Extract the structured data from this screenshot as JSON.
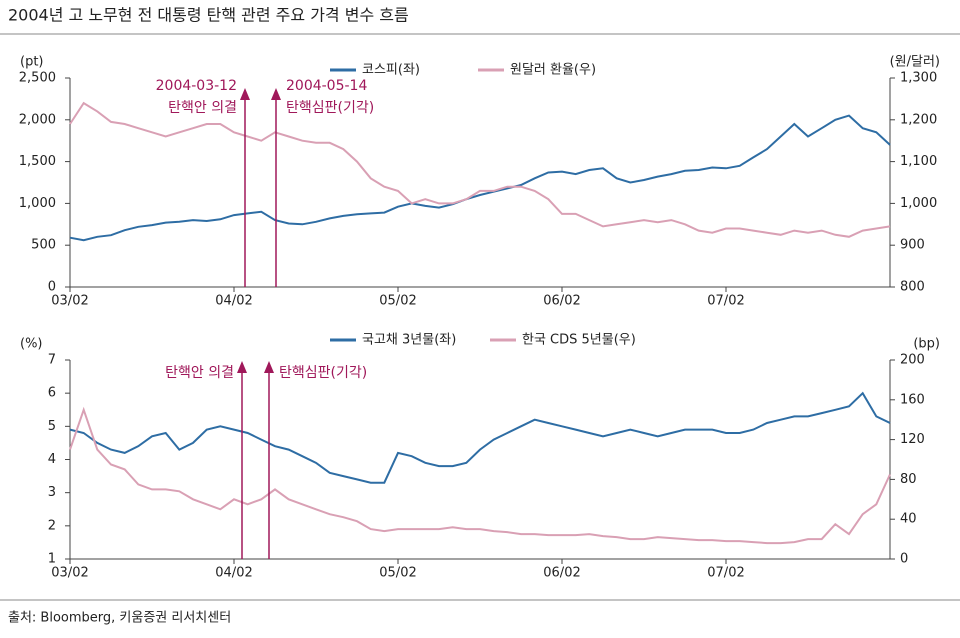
{
  "title": "2004년 고 노무현 전 대통령 탄핵 관련 주요 가격 변수 흐름",
  "source": "출처: Bloomberg, 키움증권 리서치센터",
  "chart_data": [
    {
      "type": "line",
      "categories": [
        "03/02",
        null,
        null,
        null,
        null,
        null,
        null,
        null,
        null,
        null,
        null,
        null,
        "04/02",
        null,
        null,
        null,
        null,
        null,
        null,
        null,
        null,
        null,
        null,
        null,
        "05/02",
        null,
        null,
        null,
        null,
        null,
        null,
        null,
        null,
        null,
        null,
        null,
        "06/02",
        null,
        null,
        null,
        null,
        null,
        null,
        null,
        null,
        null,
        null,
        null,
        "07/02",
        null,
        null,
        null,
        null,
        null,
        null,
        null,
        null,
        null,
        null,
        null,
        null
      ],
      "ylabel": "(pt)",
      "y2label": "(원/달러)",
      "ylim": [
        0,
        2500
      ],
      "yticks": [
        0,
        500,
        {
          "value": 1000,
          "label": "1,000"
        },
        {
          "value": 1500,
          "label": "1,500"
        },
        {
          "value": 2000,
          "label": "2,000"
        },
        {
          "value": 2500,
          "label": "2,500"
        }
      ],
      "y2lim": [
        800,
        1300
      ],
      "y2ticks": [
        800,
        900,
        {
          "value": 1000,
          "label": "1,000"
        },
        {
          "value": 1100,
          "label": "1,100"
        },
        {
          "value": 1200,
          "label": "1,200"
        },
        {
          "value": 1300,
          "label": "1,300"
        }
      ],
      "series": [
        {
          "name": "코스피(좌)",
          "color": "#2e6da4",
          "axis": "y",
          "values": [
            590,
            560,
            600,
            620,
            680,
            720,
            740,
            770,
            780,
            800,
            790,
            810,
            860,
            880,
            900,
            800,
            760,
            750,
            780,
            820,
            850,
            870,
            880,
            890,
            960,
            1000,
            970,
            950,
            990,
            1050,
            1100,
            1140,
            1180,
            1220,
            1300,
            1370,
            1380,
            1350,
            1400,
            1420,
            1300,
            1250,
            1280,
            1320,
            1350,
            1390,
            1400,
            1430,
            1420,
            1450,
            1550,
            1650,
            1800,
            1950,
            1800,
            1900,
            2000,
            2050,
            1900,
            1850,
            1700
          ]
        },
        {
          "name": "원달러 환율(우)",
          "color": "#d9a0b4",
          "axis": "y2",
          "values": [
            1190,
            1240,
            1220,
            1195,
            1190,
            1180,
            1170,
            1160,
            1170,
            1180,
            1190,
            1190,
            1170,
            1160,
            1150,
            1170,
            1160,
            1150,
            1145,
            1145,
            1130,
            1100,
            1060,
            1040,
            1030,
            1000,
            1010,
            1000,
            1000,
            1010,
            1030,
            1030,
            1040,
            1040,
            1030,
            1010,
            975,
            975,
            960,
            945,
            950,
            955,
            960,
            955,
            960,
            950,
            935,
            930,
            940,
            940,
            935,
            930,
            925,
            935,
            930,
            935,
            925,
            920,
            935,
            940,
            945
          ]
        }
      ],
      "annotations": [
        {
          "date": "2004-03-12",
          "label": "탄핵안 의결"
        },
        {
          "date": "2004-05-14",
          "label": "탄핵심판(기각)"
        }
      ]
    },
    {
      "type": "line",
      "categories": [
        "03/02",
        null,
        null,
        null,
        null,
        null,
        null,
        null,
        null,
        null,
        null,
        null,
        "04/02",
        null,
        null,
        null,
        null,
        null,
        null,
        null,
        null,
        null,
        null,
        null,
        "05/02",
        null,
        null,
        null,
        null,
        null,
        null,
        null,
        null,
        null,
        null,
        null,
        "06/02",
        null,
        null,
        null,
        null,
        null,
        null,
        null,
        null,
        null,
        null,
        null,
        "07/02",
        null,
        null,
        null,
        null,
        null,
        null,
        null,
        null,
        null,
        null,
        null,
        null
      ],
      "ylabel": "(%)",
      "y2label": "(bp)",
      "ylim": [
        1,
        7
      ],
      "yticks": [
        1,
        2,
        3,
        4,
        5,
        6,
        7
      ],
      "y2lim": [
        0,
        200
      ],
      "y2ticks": [
        0,
        40,
        80,
        120,
        160,
        200
      ],
      "series": [
        {
          "name": "국고채 3년물(좌)",
          "color": "#2e6da4",
          "axis": "y",
          "values": [
            4.9,
            4.8,
            4.5,
            4.3,
            4.2,
            4.4,
            4.7,
            4.8,
            4.3,
            4.5,
            4.9,
            5.0,
            4.9,
            4.8,
            4.6,
            4.4,
            4.3,
            4.1,
            3.9,
            3.6,
            3.5,
            3.4,
            3.3,
            3.3,
            4.2,
            4.1,
            3.9,
            3.8,
            3.8,
            3.9,
            4.3,
            4.6,
            4.8,
            5.0,
            5.2,
            5.1,
            5.0,
            4.9,
            4.8,
            4.7,
            4.8,
            4.9,
            4.8,
            4.7,
            4.8,
            4.9,
            4.9,
            4.9,
            4.8,
            4.8,
            4.9,
            5.1,
            5.2,
            5.3,
            5.3,
            5.4,
            5.5,
            5.6,
            6.0,
            5.3,
            5.1
          ]
        },
        {
          "name": "한국 CDS 5년물(우)",
          "color": "#d9a0b4",
          "axis": "y2",
          "values": [
            110,
            150,
            110,
            95,
            90,
            75,
            70,
            70,
            68,
            60,
            55,
            50,
            60,
            55,
            60,
            70,
            60,
            55,
            50,
            45,
            42,
            38,
            30,
            28,
            30,
            30,
            30,
            30,
            32,
            30,
            30,
            28,
            27,
            25,
            25,
            24,
            24,
            24,
            25,
            23,
            22,
            20,
            20,
            22,
            21,
            20,
            19,
            19,
            18,
            18,
            17,
            16,
            16,
            17,
            20,
            20,
            35,
            25,
            45,
            55,
            85
          ]
        }
      ],
      "annotations": [
        {
          "label": "탄핵안 의결"
        },
        {
          "label": "탄핵심판(기각)"
        }
      ]
    }
  ]
}
